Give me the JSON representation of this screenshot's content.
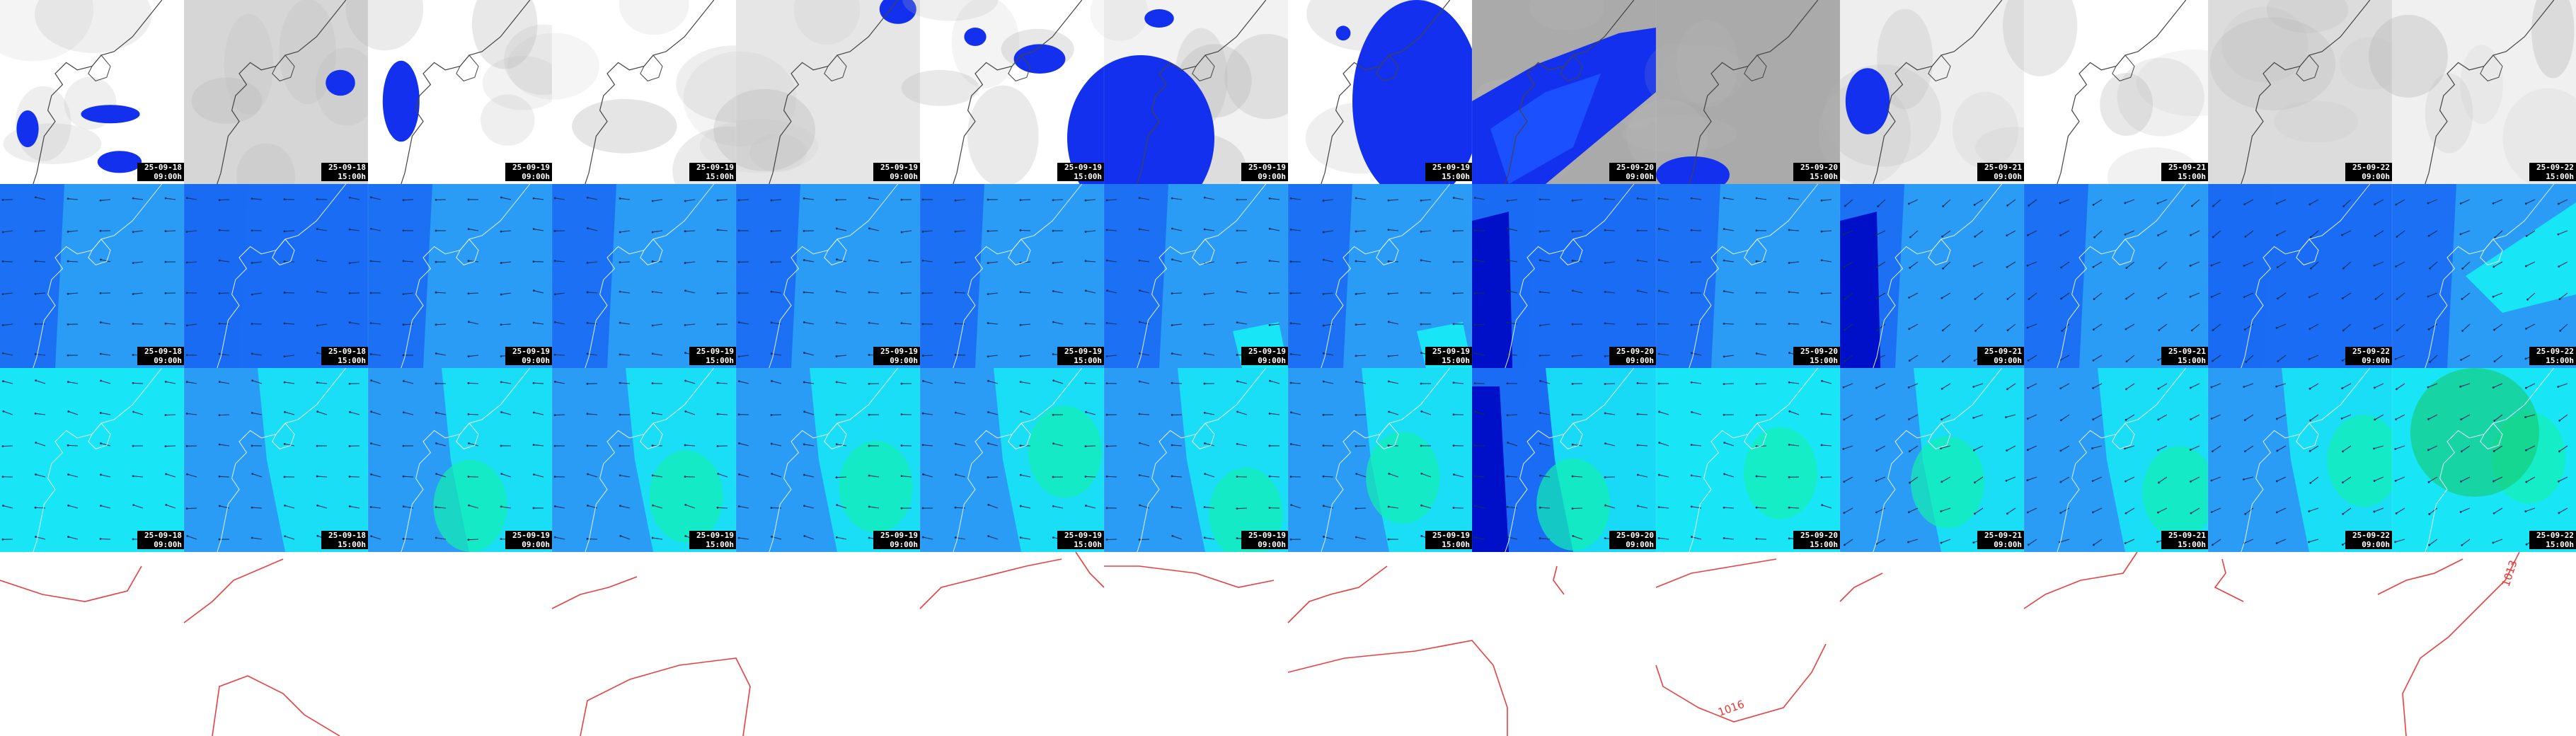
{
  "figure": {
    "columns": 14,
    "rows": [
      {
        "id": "cloud-cover",
        "kind": "grey-cloud-with-blue-precip"
      },
      {
        "id": "wind-low",
        "kind": "blue-shaded-wind-field"
      },
      {
        "id": "wind-high",
        "kind": "cyan-green-shaded-wind-field"
      },
      {
        "id": "pressure",
        "kind": "red-isobars"
      }
    ]
  },
  "timestamps": [
    {
      "date": "25-09-18",
      "time": "09:00h"
    },
    {
      "date": "25-09-18",
      "time": "15:00h"
    },
    {
      "date": "25-09-19",
      "time": "09:00h"
    },
    {
      "date": "25-09-19",
      "time": "15:00h"
    },
    {
      "date": "25-09-19",
      "time": "09:00h"
    },
    {
      "date": "25-09-19",
      "time": "15:00h"
    },
    {
      "date": "25-09-19",
      "time": "09:00h"
    },
    {
      "date": "25-09-19",
      "time": "15:00h"
    },
    {
      "date": "25-09-20",
      "time": "09:00h"
    },
    {
      "date": "25-09-20",
      "time": "15:00h"
    },
    {
      "date": "25-09-21",
      "time": "09:00h"
    },
    {
      "date": "25-09-21",
      "time": "15:00h"
    },
    {
      "date": "25-09-22",
      "time": "09:00h"
    },
    {
      "date": "25-09-22",
      "time": "15:00h"
    }
  ],
  "isobar_labels": [
    "1016",
    "1013"
  ],
  "colors": {
    "cloud_grey": "#c4c4c4",
    "cloud_dark": "#aaaaaa",
    "precip_blue": "#1230ee",
    "wind_dark": "#0010c8",
    "wind_mid": "#1a6cf4",
    "wind_light": "#2a9cf6",
    "wind_cyan": "#18e6f6",
    "wind_green": "#12f0b0",
    "isobar_red": "#e84040",
    "coast_white": "#ffffff"
  }
}
